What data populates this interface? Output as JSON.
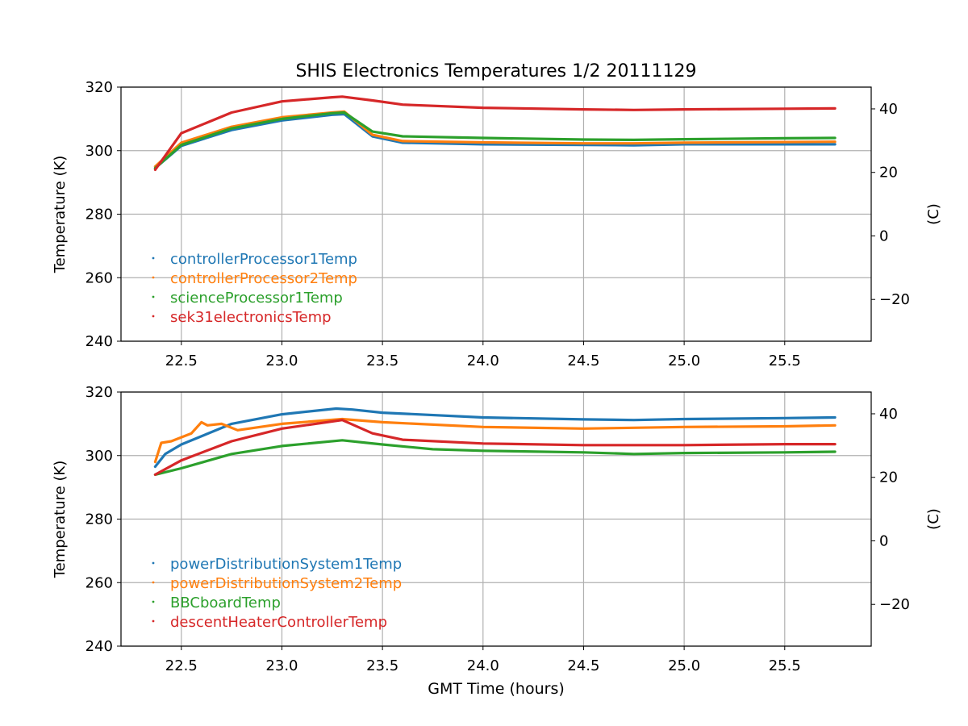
{
  "figure": {
    "title": "SHIS Electronics Temperatures 1/2 20111129",
    "xlabel": "GMT Time (hours)"
  },
  "chart_data": [
    {
      "type": "scatter",
      "title": "SHIS Electronics Temperatures 1/2 20111129",
      "xlabel": "",
      "ylabel": "Temperature (K)",
      "ylabel_right": "(C)",
      "xlim": [
        22.2,
        25.93
      ],
      "ylim": [
        240,
        320
      ],
      "ylim_right": [
        -33.15,
        46.85
      ],
      "xticks": [
        "22.5",
        "23.0",
        "23.5",
        "24.0",
        "24.5",
        "25.0",
        "25.5"
      ],
      "yticks": [
        "240",
        "260",
        "280",
        "300",
        "320"
      ],
      "yticks_right": [
        "−20",
        "0",
        "20",
        "40"
      ],
      "grid": true,
      "legend": "lower-left",
      "series": [
        {
          "name": "controllerProcessor1Temp",
          "color": "#1f77b4",
          "x": [
            22.37,
            22.5,
            22.75,
            23.0,
            23.25,
            23.31,
            23.45,
            23.6,
            24.0,
            24.5,
            24.75,
            25.0,
            25.5,
            25.75
          ],
          "y": [
            294.5,
            301.5,
            306.5,
            309.5,
            311.3,
            311.5,
            304.5,
            302.5,
            302.0,
            301.8,
            301.7,
            302.0,
            302.0,
            302.0
          ]
        },
        {
          "name": "controllerProcessor2Temp",
          "color": "#ff7f0e",
          "x": [
            22.37,
            22.5,
            22.75,
            23.0,
            23.25,
            23.31,
            23.45,
            23.6,
            24.0,
            24.5,
            24.75,
            25.0,
            25.5,
            25.75
          ],
          "y": [
            295.0,
            302.5,
            307.5,
            310.5,
            312.0,
            312.3,
            305.0,
            303.0,
            302.6,
            302.3,
            302.3,
            302.5,
            302.7,
            302.8
          ]
        },
        {
          "name": "scienceProcessor1Temp",
          "color": "#2ca02c",
          "x": [
            22.37,
            22.5,
            22.75,
            23.0,
            23.25,
            23.31,
            23.45,
            23.6,
            24.0,
            24.5,
            24.75,
            25.0,
            25.5,
            25.75
          ],
          "y": [
            294.5,
            301.8,
            307.0,
            310.0,
            311.8,
            312.0,
            306.0,
            304.5,
            304.0,
            303.5,
            303.4,
            303.6,
            303.9,
            304.0
          ]
        },
        {
          "name": "sek31electronicsTemp",
          "color": "#d62728",
          "x": [
            22.37,
            22.5,
            22.75,
            23.0,
            23.25,
            23.3,
            23.45,
            23.6,
            24.0,
            24.5,
            24.75,
            25.0,
            25.5,
            25.75
          ],
          "y": [
            294.0,
            305.5,
            312.0,
            315.5,
            316.8,
            317.0,
            315.8,
            314.5,
            313.5,
            313.0,
            312.8,
            313.0,
            313.2,
            313.3
          ]
        }
      ]
    },
    {
      "type": "scatter",
      "title": "",
      "xlabel": "GMT Time (hours)",
      "ylabel": "Temperature (K)",
      "ylabel_right": "(C)",
      "xlim": [
        22.2,
        25.93
      ],
      "ylim": [
        240,
        320
      ],
      "ylim_right": [
        -33.15,
        46.85
      ],
      "xticks": [
        "22.5",
        "23.0",
        "23.5",
        "24.0",
        "24.5",
        "25.0",
        "25.5"
      ],
      "yticks": [
        "240",
        "260",
        "280",
        "300",
        "320"
      ],
      "yticks_right": [
        "−20",
        "0",
        "20",
        "40"
      ],
      "grid": true,
      "legend": "lower-left",
      "series": [
        {
          "name": "powerDistributionSystem1Temp",
          "color": "#1f77b4",
          "x": [
            22.37,
            22.42,
            22.5,
            22.75,
            23.0,
            23.27,
            23.35,
            23.5,
            24.0,
            24.5,
            24.75,
            25.0,
            25.5,
            25.75
          ],
          "y": [
            296.5,
            300.5,
            303.5,
            310.0,
            313.0,
            314.8,
            314.5,
            313.5,
            312.0,
            311.4,
            311.2,
            311.5,
            311.8,
            312.0
          ]
        },
        {
          "name": "powerDistributionSystem2Temp",
          "color": "#ff7f0e",
          "x": [
            22.37,
            22.4,
            22.45,
            22.55,
            22.6,
            22.63,
            22.7,
            22.78,
            23.0,
            23.3,
            23.5,
            24.0,
            24.5,
            25.0,
            25.5,
            25.75
          ],
          "y": [
            298.0,
            304.0,
            304.5,
            307.0,
            310.5,
            309.5,
            310.0,
            308.0,
            310.0,
            311.5,
            310.5,
            309.0,
            308.5,
            309.0,
            309.2,
            309.5
          ]
        },
        {
          "name": "BBCboardTemp",
          "color": "#2ca02c",
          "x": [
            22.37,
            22.5,
            22.75,
            23.0,
            23.3,
            23.5,
            23.75,
            24.0,
            24.5,
            24.75,
            25.0,
            25.5,
            25.75
          ],
          "y": [
            294.0,
            296.0,
            300.5,
            303.0,
            304.8,
            303.5,
            302.0,
            301.5,
            301.0,
            300.5,
            300.8,
            301.0,
            301.2
          ]
        },
        {
          "name": "descentHeaterControllerTemp",
          "color": "#d62728",
          "x": [
            22.37,
            22.5,
            22.75,
            23.0,
            23.3,
            23.45,
            23.6,
            24.0,
            24.5,
            25.0,
            25.5,
            25.75
          ],
          "y": [
            294.0,
            298.5,
            304.5,
            308.5,
            311.2,
            307.0,
            305.0,
            303.8,
            303.3,
            303.3,
            303.6,
            303.6
          ]
        }
      ]
    }
  ]
}
